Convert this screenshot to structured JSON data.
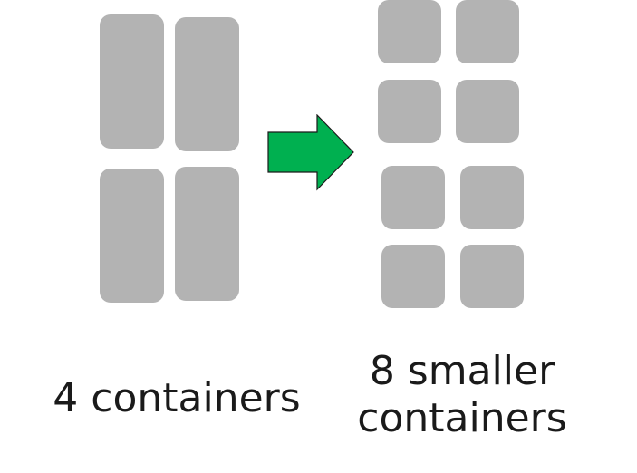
{
  "left_group": {
    "caption": "4 containers",
    "container_count": 4
  },
  "right_group": {
    "caption_line1": "8 smaller",
    "caption_line2": "containers",
    "container_count": 8
  },
  "colors": {
    "container": "#b3b3b3",
    "arrow_fill": "#00b050",
    "arrow_stroke": "#1a1a1a",
    "text": "#1a1a1a"
  },
  "icons": {
    "transition": "right-arrow-icon"
  }
}
